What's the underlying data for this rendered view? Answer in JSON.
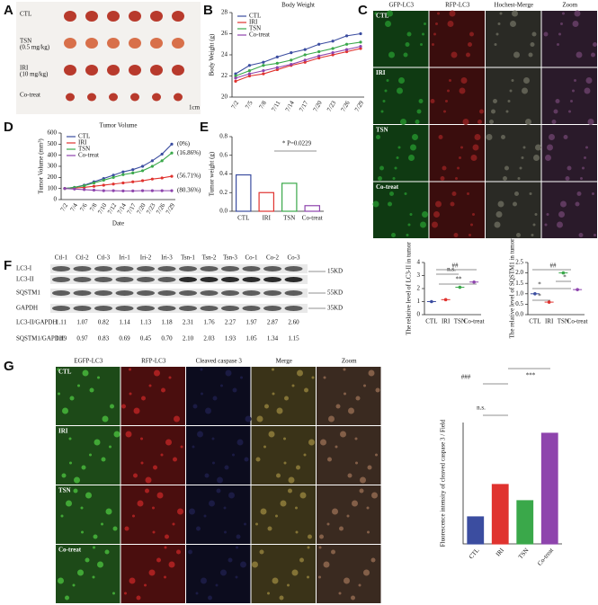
{
  "panel_labels": [
    "A",
    "B",
    "C",
    "D",
    "E",
    "F",
    "G"
  ],
  "panel_a": {
    "rows": [
      "CTL",
      "TSN",
      "IRI",
      "Co-treat"
    ],
    "sublabels": [
      "",
      "(0.5 mg/kg)",
      "(10 mg/kg)",
      ""
    ],
    "scale": "1cm"
  },
  "panel_e": {
    "columns": [
      "GFP-LC3",
      "RFP-LC3",
      "Hochest-Merge",
      "Zoom"
    ],
    "rows": [
      "CTL",
      "IRI",
      "TSN",
      "Co-treat"
    ]
  },
  "panel_f": {
    "lanes": [
      "Ctl-1",
      "Ctl-2",
      "Ctl-3",
      "Iri-1",
      "Iri-2",
      "Iri-3",
      "Tsn-1",
      "Tsn-2",
      "Tsn-3",
      "Co-1",
      "Co-2",
      "Co-3"
    ],
    "bands": [
      "LC3-I",
      "LC3-II",
      "SQSTM1",
      "GAPDH"
    ],
    "markers": [
      "15KD",
      "55KD",
      "35KD"
    ],
    "ratios": [
      {
        "label": "LC3-II/GAPDH",
        "values": [
          "1.11",
          "1.07",
          "0.82",
          "1.14",
          "1.13",
          "1.18",
          "2.31",
          "1.76",
          "2.27",
          "1.97",
          "2.87",
          "2.60"
        ]
      },
      {
        "label": "SQSTM1/GAPDH",
        "values": [
          "1.19",
          "0.97",
          "0.83",
          "0.69",
          "0.45",
          "0.70",
          "2.10",
          "2.03",
          "1.93",
          "1.05",
          "1.34",
          "1.15"
        ]
      }
    ]
  },
  "panel_g": {
    "columns": [
      "EGFP-LC3",
      "RFP-LC3",
      "Cleaved caspase 3",
      "Merge",
      "Zoom"
    ],
    "rows": [
      "CTL",
      "IRI",
      "TSN",
      "Co-treat"
    ]
  },
  "chart_data": [
    {
      "type": "line",
      "title": "Body Weight",
      "y_label": "Body Weight (g)",
      "categories": [
        "7/2",
        "7/5",
        "7/8",
        "7/11",
        "7/14",
        "7/17",
        "7/20",
        "7/23",
        "7/26",
        "7/29"
      ],
      "ylim": [
        20,
        28
      ],
      "yticks": [
        20,
        22,
        24,
        26,
        28
      ],
      "series": [
        {
          "name": "CTL",
          "color": "#3b4da0",
          "values": [
            22.2,
            23,
            23.3,
            23.8,
            24.2,
            24.5,
            25,
            25.3,
            25.8,
            26
          ]
        },
        {
          "name": "IRI",
          "color": "#e0332f",
          "values": [
            21.5,
            22,
            22.2,
            22.6,
            23,
            23.3,
            23.7,
            24,
            24.3,
            24.6
          ]
        },
        {
          "name": "TSN",
          "color": "#3aa84a",
          "values": [
            22,
            22.5,
            23,
            23.2,
            23.5,
            24,
            24.3,
            24.6,
            25,
            25.2
          ]
        },
        {
          "name": "Co-treat",
          "color": "#8e44ad",
          "values": [
            21.8,
            22.2,
            22.5,
            22.8,
            23.1,
            23.5,
            23.9,
            24.2,
            24.5,
            24.8
          ]
        }
      ]
    },
    {
      "type": "line",
      "title": "Tumor Volume",
      "y_label": "Tumor Volume (mm³)",
      "x_label": "Date",
      "categories": [
        "7/2",
        "7/4",
        "7/6",
        "7/8",
        "7/10",
        "7/12",
        "7/14",
        "7/17",
        "7/20",
        "7/23",
        "7/26",
        "7/29"
      ],
      "ylim": [
        0,
        600
      ],
      "yticks": [
        0,
        100,
        200,
        300,
        400,
        500,
        600
      ],
      "series": [
        {
          "name": "CTL",
          "color": "#3b4da0",
          "end_label": "(0%)",
          "values": [
            100,
            110,
            130,
            160,
            190,
            220,
            250,
            270,
            300,
            350,
            410,
            500
          ]
        },
        {
          "name": "IRI",
          "color": "#e0332f",
          "end_label": "(56.71%)",
          "values": [
            100,
            105,
            110,
            120,
            130,
            140,
            150,
            160,
            170,
            185,
            195,
            210
          ]
        },
        {
          "name": "TSN",
          "color": "#3aa84a",
          "end_label": "(16.86%)",
          "values": [
            100,
            110,
            125,
            150,
            175,
            200,
            225,
            240,
            260,
            300,
            350,
            420
          ]
        },
        {
          "name": "Co-treat",
          "color": "#8e44ad",
          "end_label": "(80.36%)",
          "values": [
            100,
            95,
            90,
            85,
            80,
            80,
            78,
            78,
            80,
            80,
            80,
            80
          ]
        }
      ]
    },
    {
      "type": "bar",
      "y_label": "Tumor weight (g)",
      "categories": [
        "CTL",
        "IRI",
        "TSN",
        "Co-treat"
      ],
      "values": [
        0.39,
        0.2,
        0.3,
        0.06
      ],
      "colors": [
        "#3b4da0",
        "#e0332f",
        "#3aa84a",
        "#8e44ad"
      ],
      "ylim": [
        0,
        0.8
      ],
      "yticks": [
        {
          "value": 0,
          "label": "0.0"
        },
        0.2,
        0.4,
        0.6,
        0.8
      ],
      "annotations": [
        "* P=0.0229"
      ]
    },
    {
      "type": "dot",
      "y_label": "The relative level of LC3-II in tumor",
      "categories": [
        "CTL",
        "IRI",
        "TSN",
        "Co-treat"
      ],
      "values": [
        1.0,
        1.15,
        2.1,
        2.5
      ],
      "colors": [
        "#3b4da0",
        "#e0332f",
        "#3aa84a",
        "#8e44ad"
      ],
      "ylim": [
        0,
        4
      ],
      "yticks": [
        0,
        1,
        2,
        3,
        4
      ],
      "annotations": [
        "n.s.",
        "**",
        "##"
      ]
    },
    {
      "type": "dot",
      "y_label": "The relative level of SQSTM1 in tumor",
      "categories": [
        "CTL",
        "IRI",
        "TSN",
        "Co-treat"
      ],
      "values": [
        1.0,
        0.6,
        2.0,
        1.2
      ],
      "colors": [
        "#3b4da0",
        "#e0332f",
        "#3aa84a",
        "#8e44ad"
      ],
      "ylim": [
        0,
        2.5
      ],
      "yticks": [
        {
          "value": 0,
          "label": "0.0"
        },
        0.5,
        {
          "value": 1,
          "label": "1.0"
        },
        1.5,
        {
          "value": 2,
          "label": "2.0"
        },
        2.5
      ],
      "annotations": [
        "*",
        "*",
        "##",
        "*"
      ]
    },
    {
      "type": "bar",
      "y_label": "Fluorescence intensity of cleaved caspase 3 / Field",
      "categories": [
        "CTL",
        "IRI",
        "TSN",
        "Co-treat"
      ],
      "values": [
        10,
        22,
        16,
        41
      ],
      "colors": [
        "#3b4da0",
        "#e0332f",
        "#3aa84a",
        "#8e44ad"
      ],
      "ylim": [
        0,
        45
      ],
      "annotations": [
        "n.s.",
        "###",
        "***"
      ]
    }
  ]
}
